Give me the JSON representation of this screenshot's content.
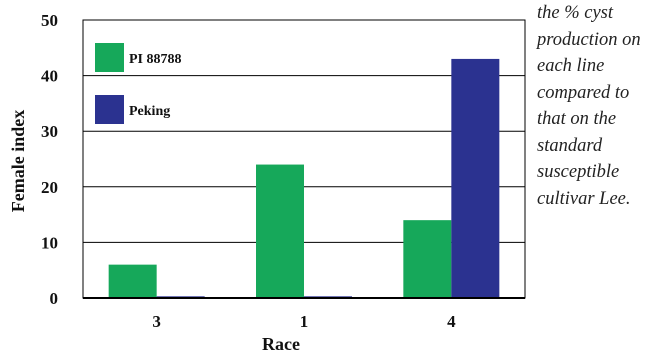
{
  "side_note": "the % cyst\nproduction on\neach line\ncompared to\nthat on the\nstandard\nsusceptible\ncultivar Lee.",
  "colors": {
    "green": "#16a85a",
    "navy": "#2b3290"
  },
  "chart_data": {
    "type": "bar",
    "title": "",
    "xlabel": "Race",
    "ylabel": "Female index",
    "categories": [
      "3",
      "1",
      "4"
    ],
    "ylim": [
      0,
      50
    ],
    "yticks": [
      0,
      10,
      20,
      30,
      40,
      50
    ],
    "grid": "horizontal",
    "legend": "top-left",
    "series": [
      {
        "name": "PI 88788",
        "color": "#16a85a",
        "values": [
          6,
          24,
          14
        ]
      },
      {
        "name": "Peking",
        "color": "#2b3290",
        "values": [
          0.3,
          0.3,
          43
        ]
      }
    ]
  }
}
